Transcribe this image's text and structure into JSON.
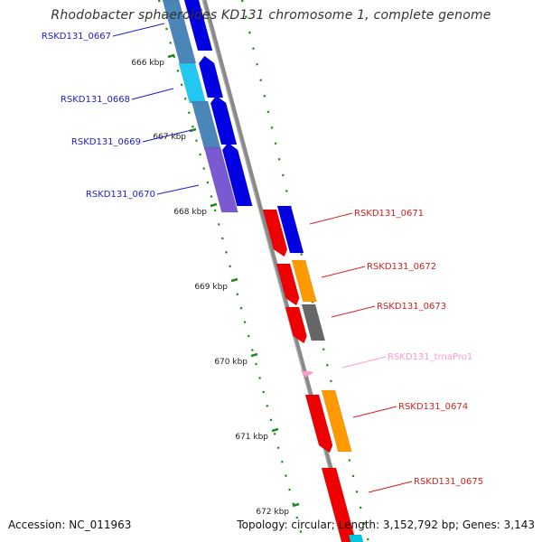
{
  "title": "Rhodobacter sphaeroides KD131 chromosome 1, complete genome",
  "footer": {
    "accession": "Accession: NC_011963",
    "summary": "Topology: circular; Length: 3,152,792 bp; Genes: 3,143"
  },
  "scale_ticks": [
    "666 kbp",
    "667 kbp",
    "668 kbp",
    "669 kbp",
    "670 kbp",
    "671 kbp",
    "672 kbp"
  ],
  "genes": [
    {
      "id": "RSKD131_0667",
      "color": "#1c1cc8"
    },
    {
      "id": "RSKD131_0668",
      "color": "#1c1cc8"
    },
    {
      "id": "RSKD131_0669",
      "color": "#1c1cc8"
    },
    {
      "id": "RSKD131_0670",
      "color": "#1c1cc8"
    },
    {
      "id": "RSKD131_0671",
      "color": "#d42020"
    },
    {
      "id": "RSKD131_0672",
      "color": "#d42020"
    },
    {
      "id": "RSKD131_0673",
      "color": "#d42020"
    },
    {
      "id": "RSKD131_trnaPro1",
      "color": "#f0a0c8"
    },
    {
      "id": "RSKD131_0674",
      "color": "#d42020"
    },
    {
      "id": "RSKD131_0675",
      "color": "#d42020"
    }
  ],
  "colors": {
    "backbone": "#8a8a8a",
    "tick_marks": "#1e8a1e",
    "gene_blue": "#0000e0",
    "gene_red": "#ee0000",
    "gene_orange": "#ff9900",
    "gene_gray": "#666666",
    "cog_steel": "#4a86b8",
    "cog_cyan": "#22c8f0",
    "cog_purple": "#7a5ad0",
    "trna_pink": "#ff99cc"
  }
}
